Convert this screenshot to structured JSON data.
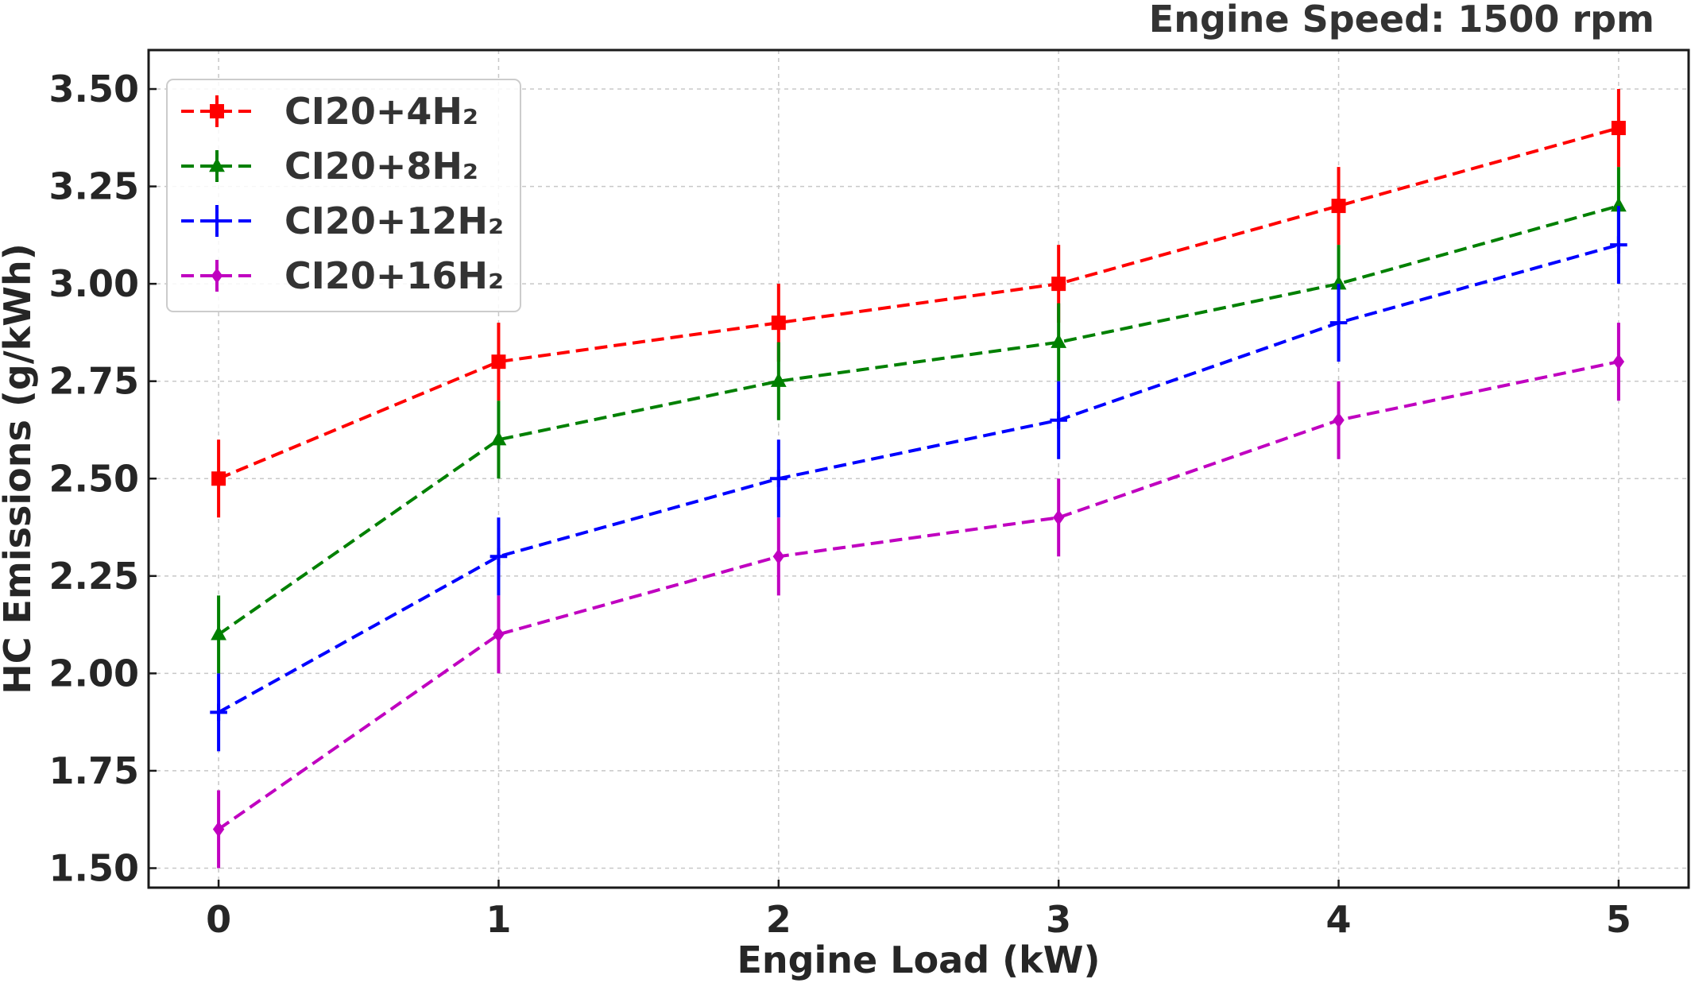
{
  "chart_data": {
    "type": "line",
    "subtitle": "Engine Speed: 1500 rpm",
    "xlabel": "Engine Load (kW)",
    "ylabel": "HC Emissions (g/kWh)",
    "x": [
      0,
      1,
      2,
      3,
      4,
      5
    ],
    "x_tick_labels": [
      "0",
      "1",
      "2",
      "3",
      "4",
      "5"
    ],
    "y_tick_labels": [
      "1.50",
      "1.75",
      "2.00",
      "2.25",
      "2.50",
      "2.75",
      "3.00",
      "3.25",
      "3.50"
    ],
    "xlim": [
      -0.25,
      5.25
    ],
    "ylim": [
      1.45,
      3.6
    ],
    "grid": true,
    "legend_position": "top-left",
    "error_bar": 0.1,
    "series": [
      {
        "name": "CI20+4H₂",
        "color": "#ff0000",
        "marker": "square",
        "values": [
          2.5,
          2.8,
          2.9,
          3.0,
          3.2,
          3.4
        ]
      },
      {
        "name": "CI20+8H₂",
        "color": "#008000",
        "marker": "triangle",
        "values": [
          2.1,
          2.6,
          2.75,
          2.85,
          3.0,
          3.2
        ]
      },
      {
        "name": "CI20+12H₂",
        "color": "#0000ff",
        "marker": "plus",
        "values": [
          1.9,
          2.3,
          2.5,
          2.65,
          2.9,
          3.1
        ]
      },
      {
        "name": "CI20+16H₂",
        "color": "#c000c0",
        "marker": "diamond",
        "values": [
          1.6,
          2.1,
          2.3,
          2.4,
          2.65,
          2.8
        ]
      }
    ]
  }
}
